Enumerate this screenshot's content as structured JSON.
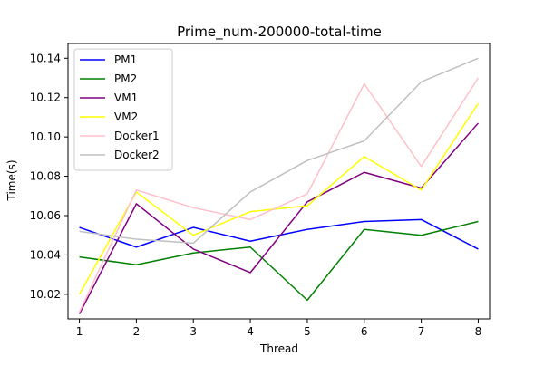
{
  "chart_data": {
    "type": "line",
    "title": "Prime_num-200000-total-time",
    "xlabel": "Thread",
    "ylabel": "Time(s)",
    "x": [
      1,
      2,
      3,
      4,
      5,
      6,
      7,
      8
    ],
    "xlim": [
      0.8,
      8.2
    ],
    "ylim": [
      10.0075,
      10.1475
    ],
    "xticks": [
      "1",
      "2",
      "3",
      "4",
      "5",
      "6",
      "7",
      "8"
    ],
    "yticks": [
      {
        "value": 10.02,
        "label": "10.02"
      },
      {
        "value": 10.04,
        "label": "10.04"
      },
      {
        "value": 10.06,
        "label": "10.06"
      },
      {
        "value": 10.08,
        "label": "10.08"
      },
      {
        "value": 10.1,
        "label": "10.10"
      },
      {
        "value": 10.12,
        "label": "10.12"
      },
      {
        "value": 10.14,
        "label": "10.14"
      }
    ],
    "grid": false,
    "legend_position": "top-left",
    "series": [
      {
        "name": "PM1",
        "color": "#0000ff",
        "values": [
          10.054,
          10.044,
          10.054,
          10.047,
          10.053,
          10.057,
          10.058,
          10.043
        ]
      },
      {
        "name": "PM2",
        "color": "#008000",
        "values": [
          10.039,
          10.035,
          10.041,
          10.044,
          10.017,
          10.053,
          10.05,
          10.057
        ]
      },
      {
        "name": "VM1",
        "color": "#800080",
        "values": [
          10.01,
          10.066,
          10.043,
          10.031,
          10.067,
          10.082,
          10.074,
          10.107
        ]
      },
      {
        "name": "VM2",
        "color": "#ffff00",
        "values": [
          10.02,
          10.072,
          10.05,
          10.062,
          10.065,
          10.09,
          10.073,
          10.117
        ]
      },
      {
        "name": "Docker1",
        "color": "#ffc0cb",
        "values": [
          10.011,
          10.073,
          10.064,
          10.058,
          10.071,
          10.127,
          10.085,
          10.13
        ]
      },
      {
        "name": "Docker2",
        "color": "#c0c0c0",
        "values": [
          10.052,
          10.048,
          10.046,
          10.072,
          10.088,
          10.098,
          10.128,
          10.14
        ]
      }
    ]
  }
}
